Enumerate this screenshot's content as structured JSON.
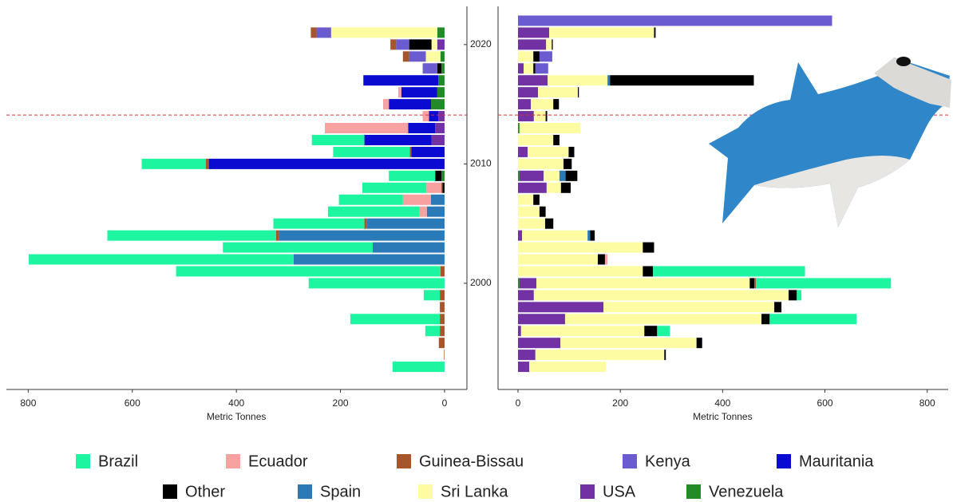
{
  "chart_data": [
    {
      "type": "bar",
      "orientation": "horizontal",
      "x_label": "Metric Tonnes",
      "xlim": [
        842,
        -43
      ],
      "xticks": [
        800,
        600,
        400,
        200,
        0
      ],
      "y": [
        1993,
        1994,
        1995,
        1996,
        1997,
        1998,
        1999,
        2000,
        2001,
        2002,
        2003,
        2004,
        2005,
        2006,
        2007,
        2008,
        2009,
        2010,
        2011,
        2012,
        2013,
        2014,
        2015,
        2016,
        2017,
        2018,
        2019,
        2020,
        2021,
        2022
      ],
      "ylim": [
        1991.1,
        2023.2
      ],
      "yticks": [
        2000,
        2010,
        2020
      ],
      "hline": 2014.1,
      "series": [
        {
          "name": "Brazil",
          "color": "#1ef5a0",
          "values": [
            100,
            0,
            0,
            28,
            172,
            0,
            31,
            261,
            508,
            509,
            288,
            324,
            175,
            176,
            123,
            123,
            89,
            123,
            147,
            101,
            0,
            0,
            0,
            0,
            0,
            0,
            0,
            0,
            0,
            0
          ]
        },
        {
          "name": "Ecuador",
          "color": "#f7a1a1",
          "values": [
            0,
            0,
            0,
            0,
            0,
            0,
            0,
            0,
            0,
            0,
            0,
            0,
            0,
            14,
            54,
            29,
            0,
            0,
            0,
            0,
            160,
            12,
            11,
            6,
            0,
            0,
            0,
            0,
            0,
            0
          ]
        },
        {
          "name": "Guinea-Bissau",
          "color": "#a5562b",
          "values": [
            0,
            1,
            11,
            9,
            9,
            9,
            9,
            0,
            8,
            0,
            0,
            6,
            5,
            0,
            0,
            2,
            0,
            6,
            3,
            0,
            0,
            0,
            0,
            0,
            0,
            0,
            12,
            11,
            11,
            0
          ]
        },
        {
          "name": "Kenya",
          "color": "#6b5bd0",
          "values": [
            0,
            0,
            0,
            0,
            0,
            0,
            0,
            0,
            0,
            0,
            0,
            0,
            0,
            0,
            0,
            0,
            0,
            0,
            0,
            0,
            0,
            0,
            0,
            0,
            0,
            28,
            32,
            25,
            28,
            0
          ]
        },
        {
          "name": "Mauritania",
          "color": "#0a0ad0",
          "values": [
            0,
            0,
            0,
            0,
            0,
            0,
            0,
            0,
            0,
            0,
            0,
            0,
            0,
            0,
            0,
            0,
            0,
            453,
            64,
            129,
            52,
            18,
            81,
            69,
            144,
            0,
            0,
            0,
            0,
            0
          ]
        },
        {
          "name": "Other",
          "color": "#000000",
          "values": [
            0,
            0,
            0,
            0,
            0,
            0,
            0,
            0,
            0,
            0,
            0,
            0,
            0,
            0,
            0,
            4,
            12,
            0,
            0,
            0,
            0,
            0,
            0,
            0,
            0,
            8,
            0,
            43,
            0,
            0
          ]
        },
        {
          "name": "Spain",
          "color": "#2a7ab8",
          "values": [
            0,
            0,
            0,
            0,
            0,
            0,
            0,
            0,
            0,
            290,
            138,
            318,
            149,
            34,
            26,
            0,
            0,
            0,
            0,
            0,
            0,
            0,
            0,
            0,
            0,
            0,
            0,
            0,
            0,
            0
          ]
        },
        {
          "name": "Sri Lanka",
          "color": "#fdfca2",
          "values": [
            0,
            0,
            0,
            0,
            0,
            0,
            0,
            0,
            0,
            0,
            0,
            0,
            0,
            0,
            0,
            0,
            0,
            0,
            0,
            0,
            0,
            0,
            0,
            0,
            0,
            0,
            28,
            11,
            204,
            0
          ]
        },
        {
          "name": "USA",
          "color": "#7232a3",
          "values": [
            0,
            0,
            0,
            0,
            0,
            0,
            0,
            0,
            0,
            0,
            0,
            0,
            0,
            0,
            0,
            0,
            0,
            0,
            0,
            25,
            18,
            12,
            0,
            0,
            0,
            0,
            0,
            14,
            0,
            0
          ]
        },
        {
          "name": "Venezuela",
          "color": "#248a28",
          "values": [
            0,
            0,
            0,
            0,
            0,
            0,
            0,
            0,
            0,
            0,
            0,
            0,
            0,
            0,
            0,
            0,
            6,
            0,
            0,
            0,
            0,
            0,
            26,
            14,
            12,
            6,
            8,
            0,
            14,
            0
          ]
        }
      ]
    },
    {
      "type": "bar",
      "orientation": "horizontal",
      "x_label": "Metric Tonnes",
      "xlim": [
        -39,
        841
      ],
      "xticks": [
        0,
        200,
        400,
        600,
        800
      ],
      "y": [
        1993,
        1994,
        1995,
        1996,
        1997,
        1998,
        1999,
        2000,
        2001,
        2002,
        2003,
        2004,
        2005,
        2006,
        2007,
        2008,
        2009,
        2010,
        2011,
        2012,
        2013,
        2014,
        2015,
        2016,
        2017,
        2018,
        2019,
        2020,
        2021,
        2022
      ],
      "ylim": [
        1991.1,
        2023.2
      ],
      "hline": 2014.1,
      "series": [
        {
          "name": "Brazil",
          "color": "#1ef5a0",
          "values": [
            0,
            0,
            0,
            25,
            170,
            0,
            9,
            264,
            297,
            0,
            0,
            0,
            0,
            0,
            0,
            0,
            0,
            0,
            0,
            0,
            0,
            0,
            0,
            0,
            0,
            0,
            0,
            0,
            0,
            0
          ]
        },
        {
          "name": "Ecuador",
          "color": "#f7a1a1",
          "values": [
            0,
            0,
            0,
            0,
            0,
            0,
            0,
            0,
            0,
            5,
            0,
            0,
            0,
            0,
            0,
            0,
            0,
            0,
            0,
            0,
            0,
            0,
            0,
            0,
            0,
            0,
            0,
            0,
            0,
            0
          ]
        },
        {
          "name": "Guinea-Bissau",
          "color": "#a5562b",
          "values": [
            0,
            0,
            0,
            0,
            0,
            0,
            0,
            3,
            0,
            0,
            0,
            0,
            0,
            0,
            0,
            0,
            0,
            0,
            0,
            0,
            0,
            0,
            0,
            0,
            0,
            0,
            0,
            0,
            0,
            0
          ]
        },
        {
          "name": "Kenya",
          "color": "#6b5bd0",
          "values": [
            0,
            0,
            0,
            0,
            0,
            0,
            0,
            0,
            0,
            0,
            0,
            0,
            0,
            0,
            0,
            0,
            0,
            0,
            0,
            0,
            0,
            0,
            0,
            0,
            0,
            25,
            25,
            0,
            0,
            614
          ]
        },
        {
          "name": "Mauritania",
          "color": "#0a0ad0",
          "values": [
            0,
            0,
            0,
            0,
            0,
            0,
            0,
            0,
            0,
            0,
            0,
            0,
            0,
            0,
            0,
            0,
            0,
            0,
            0,
            0,
            0,
            0,
            0,
            0,
            0,
            0,
            0,
            0,
            0,
            0
          ]
        },
        {
          "name": "Other",
          "color": "#000000",
          "values": [
            0,
            3,
            11,
            25,
            16,
            14,
            16,
            9,
            20,
            14,
            22,
            9,
            16,
            12,
            12,
            19,
            23,
            16,
            11,
            12,
            0,
            3,
            11,
            2,
            281,
            4,
            12,
            2,
            3,
            0
          ]
        },
        {
          "name": "Spain",
          "color": "#2a7ab8",
          "values": [
            0,
            0,
            0,
            0,
            0,
            0,
            0,
            0,
            0,
            0,
            0,
            5,
            0,
            0,
            0,
            0,
            12,
            0,
            0,
            0,
            0,
            0,
            0,
            0,
            5,
            0,
            0,
            0,
            0,
            0
          ]
        },
        {
          "name": "Sri Lanka",
          "color": "#fdfca2",
          "values": [
            150,
            252,
            266,
            241,
            384,
            334,
            498,
            417,
            244,
            156,
            244,
            128,
            53,
            42,
            30,
            28,
            31,
            89,
            80,
            69,
            119,
            23,
            44,
            78,
            117,
            19,
            30,
            11,
            205,
            0
          ]
        },
        {
          "name": "USA",
          "color": "#7232a3",
          "values": [
            22,
            34,
            83,
            6,
            92,
            167,
            31,
            33,
            0,
            0,
            0,
            8,
            0,
            0,
            0,
            56,
            47,
            0,
            19,
            0,
            0,
            31,
            25,
            39,
            58,
            11,
            0,
            55,
            61,
            0
          ]
        },
        {
          "name": "Venezuela",
          "color": "#248a28",
          "values": [
            0,
            0,
            0,
            0,
            0,
            0,
            0,
            3,
            0,
            0,
            0,
            0,
            0,
            0,
            0,
            0,
            3,
            0,
            0,
            0,
            3,
            0,
            0,
            0,
            0,
            0,
            0,
            0,
            0,
            0
          ]
        }
      ]
    }
  ]
}
